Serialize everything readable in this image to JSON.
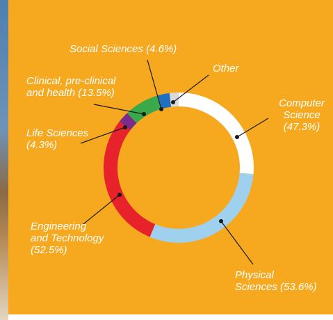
{
  "chart_data": {
    "type": "donut",
    "categories": [
      "Computer\nScience",
      "Physical\nSciences",
      "Engineering\nand Technology",
      "Life Sciences",
      "Clinical, pre-clinical\nand health",
      "Social Sciences",
      "Other"
    ],
    "values": [
      47.3,
      53.6,
      52.5,
      4.3,
      13.5,
      4.6,
      3.5
    ],
    "value_labels": [
      "(47.3%)",
      "(53.6%)",
      "(52.5%)",
      "(4.3%)",
      "(13.5%)",
      "(4.6%)",
      null
    ],
    "colors": [
      "#ffffff",
      "#9fd0ee",
      "#e8222b",
      "#7b2b8c",
      "#39a949",
      "#1f70c1",
      "#d9d9d9"
    ]
  }
}
